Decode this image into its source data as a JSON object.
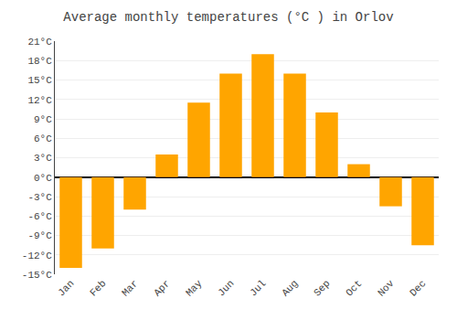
{
  "chart_data": {
    "type": "bar",
    "title": "Average monthly temperatures (°C ) in Orlov",
    "categories": [
      "Jan",
      "Feb",
      "Mar",
      "Apr",
      "May",
      "Jun",
      "Jul",
      "Aug",
      "Sep",
      "Oct",
      "Nov",
      "Dec"
    ],
    "values": [
      -14,
      -11,
      -5,
      3.5,
      11.5,
      16,
      19,
      16,
      10,
      2,
      -4.5,
      -10.5
    ],
    "color": "#FFA500",
    "ylim": [
      -15,
      21
    ],
    "yticks": [
      {
        "value": -15,
        "label": "-15°C"
      },
      {
        "value": -12,
        "label": "-12°C"
      },
      {
        "value": -9,
        "label": "-9°C"
      },
      {
        "value": -6,
        "label": "-6°C"
      },
      {
        "value": -3,
        "label": "-3°C"
      },
      {
        "value": 0,
        "label": "0°C"
      },
      {
        "value": 3,
        "label": "3°C"
      },
      {
        "value": 6,
        "label": "6°C"
      },
      {
        "value": 9,
        "label": "9°C"
      },
      {
        "value": 12,
        "label": "12°C"
      },
      {
        "value": 15,
        "label": "15°C"
      },
      {
        "value": 18,
        "label": "18°C"
      },
      {
        "value": 21,
        "label": "21°C"
      }
    ],
    "grid": true
  }
}
